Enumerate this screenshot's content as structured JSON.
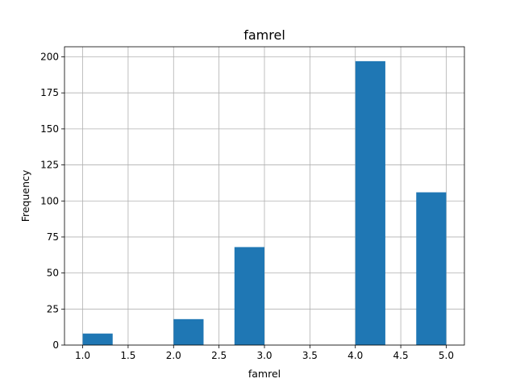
{
  "chart_data": {
    "type": "bar",
    "title": "famrel",
    "xlabel": "famrel",
    "ylabel": "Frequency",
    "xlim": [
      0.8,
      5.2
    ],
    "ylim": [
      0,
      207
    ],
    "grid": true,
    "bar_color": "#1f77b4",
    "bin_width": 0.33,
    "bars": [
      {
        "x_start": 1.0,
        "value": 8
      },
      {
        "x_start": 2.0,
        "value": 18
      },
      {
        "x_start": 2.67,
        "value": 68
      },
      {
        "x_start": 4.0,
        "value": 197
      },
      {
        "x_start": 4.67,
        "value": 106
      }
    ],
    "x_ticks": [
      {
        "value": 1.0,
        "label": "1.0"
      },
      {
        "value": 1.5,
        "label": "1.5"
      },
      {
        "value": 2.0,
        "label": "2.0"
      },
      {
        "value": 2.5,
        "label": "2.5"
      },
      {
        "value": 3.0,
        "label": "3.0"
      },
      {
        "value": 3.5,
        "label": "3.5"
      },
      {
        "value": 4.0,
        "label": "4.0"
      },
      {
        "value": 4.5,
        "label": "4.5"
      },
      {
        "value": 5.0,
        "label": "5.0"
      }
    ],
    "y_ticks": [
      {
        "value": 0,
        "label": "0"
      },
      {
        "value": 25,
        "label": "25"
      },
      {
        "value": 50,
        "label": "50"
      },
      {
        "value": 75,
        "label": "75"
      },
      {
        "value": 100,
        "label": "100"
      },
      {
        "value": 125,
        "label": "125"
      },
      {
        "value": 150,
        "label": "150"
      },
      {
        "value": 175,
        "label": "175"
      },
      {
        "value": 200,
        "label": "200"
      }
    ]
  }
}
